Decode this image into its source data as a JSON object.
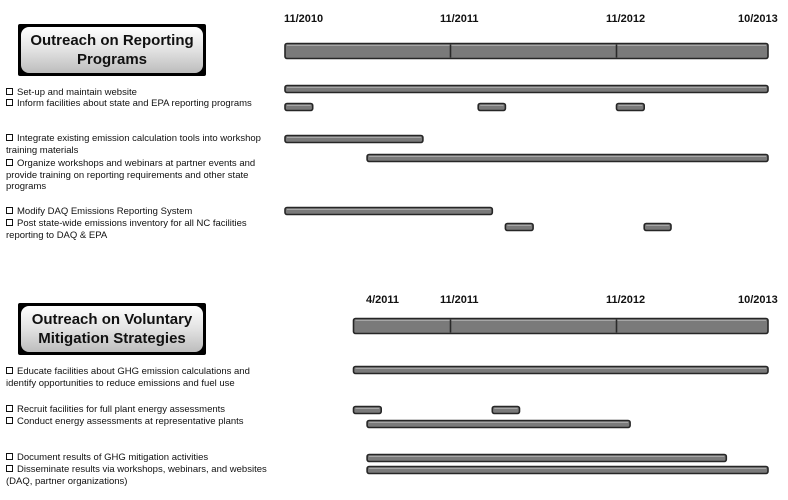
{
  "chart_data": [
    {
      "type": "gantt",
      "title": "Outreach on Reporting Programs",
      "axis_ticks": [
        {
          "label": "11/2010",
          "date": "2010-11-01"
        },
        {
          "label": "11/2011",
          "date": "2011-11-01"
        },
        {
          "label": "11/2012",
          "date": "2012-11-01"
        },
        {
          "label": "10/2013",
          "date": "2013-10-01"
        }
      ],
      "overall": {
        "start": "2010-11-01",
        "end": "2013-10-01"
      },
      "tasks": [
        {
          "label": "Set-up and maintain website",
          "segments": [
            [
              "2010-11-01",
              "2013-10-01"
            ]
          ]
        },
        {
          "label": "Inform facilities about state and EPA reporting programs",
          "segments": [
            [
              "2010-11-01",
              "2011-01-01"
            ],
            [
              "2012-01-01",
              "2012-03-01"
            ],
            [
              "2012-11-01",
              "2013-01-01"
            ]
          ]
        },
        {
          "label": "Integrate existing emission calculation tools into workshop training materials",
          "segments": [
            [
              "2010-11-01",
              "2011-09-01"
            ]
          ]
        },
        {
          "label": "Organize workshops and webinars at partner events and provide training on reporting requirements and other state programs",
          "segments": [
            [
              "2011-05-01",
              "2013-10-01"
            ]
          ]
        },
        {
          "label": "Modify DAQ Emissions Reporting System",
          "segments": [
            [
              "2010-11-01",
              "2012-02-01"
            ]
          ]
        },
        {
          "label": "Post state-wide emissions inventory for all NC facilities reporting to DAQ & EPA",
          "segments": [
            [
              "2012-03-01",
              "2012-05-01"
            ],
            [
              "2013-01-01",
              "2013-03-01"
            ]
          ]
        }
      ]
    },
    {
      "type": "gantt",
      "title": "Outreach on Voluntary Mitigation Strategies",
      "axis_ticks": [
        {
          "label": "4/2011",
          "date": "2011-04-01"
        },
        {
          "label": "11/2011",
          "date": "2011-11-01"
        },
        {
          "label": "11/2012",
          "date": "2012-11-01"
        },
        {
          "label": "10/2013",
          "date": "2013-10-01"
        }
      ],
      "overall": {
        "start": "2011-04-01",
        "end": "2013-10-01"
      },
      "tasks": [
        {
          "label": "Educate facilities about GHG emission calculations and identify opportunities to reduce emissions and fuel use",
          "segments": [
            [
              "2011-04-01",
              "2013-10-01"
            ]
          ]
        },
        {
          "label": "Recruit facilities for full plant energy assessments",
          "segments": [
            [
              "2011-04-01",
              "2011-06-01"
            ],
            [
              "2012-02-01",
              "2012-04-01"
            ]
          ]
        },
        {
          "label": "Conduct energy assessments at representative plants",
          "segments": [
            [
              "2011-05-01",
              "2012-12-01"
            ]
          ]
        },
        {
          "label": "Document results of GHG mitigation activities",
          "segments": [
            [
              "2011-05-01",
              "2013-07-01"
            ]
          ]
        },
        {
          "label": "Disseminate results via workshops, webinars, and websites (DAQ, partner organizations)",
          "segments": [
            [
              "2011-05-01",
              "2013-10-01"
            ]
          ]
        }
      ]
    }
  ]
}
